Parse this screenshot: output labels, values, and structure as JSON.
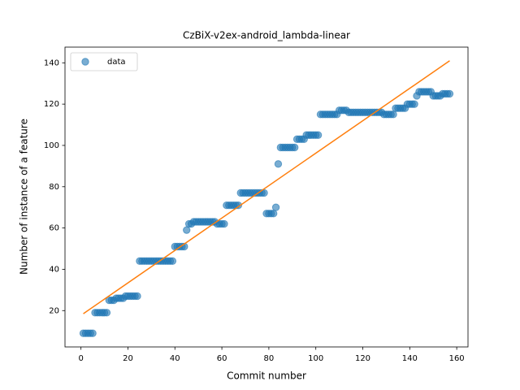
{
  "chart_data": {
    "type": "scatter",
    "title": "CzBiX-v2ex-android_lambda-linear",
    "xlabel": "Commit number",
    "ylabel": "Number of instance of a feature",
    "xlim": [
      -6.8,
      164.8
    ],
    "ylim": [
      2.4,
      147.6
    ],
    "xticks": [
      0,
      20,
      40,
      60,
      80,
      100,
      120,
      140,
      160
    ],
    "yticks": [
      20,
      40,
      60,
      80,
      100,
      120,
      140
    ],
    "legend": "upper left",
    "series": [
      {
        "name": "data",
        "color": "#1f77b4",
        "x": [
          1,
          2,
          3,
          4,
          5,
          6,
          7,
          8,
          9,
          10,
          11,
          12,
          13,
          14,
          15,
          16,
          17,
          18,
          19,
          20,
          21,
          22,
          23,
          24,
          25,
          26,
          27,
          28,
          29,
          30,
          31,
          32,
          33,
          34,
          35,
          36,
          37,
          38,
          39,
          40,
          41,
          42,
          43,
          44,
          45,
          46,
          47,
          48,
          49,
          50,
          51,
          52,
          53,
          54,
          55,
          56,
          57,
          58,
          59,
          60,
          61,
          62,
          63,
          64,
          65,
          66,
          67,
          68,
          69,
          70,
          71,
          72,
          73,
          74,
          75,
          76,
          77,
          78,
          79,
          80,
          81,
          82,
          83,
          84,
          85,
          86,
          87,
          88,
          89,
          90,
          91,
          92,
          93,
          94,
          95,
          96,
          97,
          98,
          99,
          100,
          101,
          102,
          103,
          104,
          105,
          106,
          107,
          108,
          109,
          110,
          111,
          112,
          113,
          114,
          115,
          116,
          117,
          118,
          119,
          120,
          121,
          122,
          123,
          124,
          125,
          126,
          127,
          128,
          129,
          130,
          131,
          132,
          133,
          134,
          135,
          136,
          137,
          138,
          139,
          140,
          141,
          142,
          143,
          144,
          145,
          146,
          147,
          148,
          149,
          150,
          151,
          152,
          153,
          154,
          155,
          156,
          157
        ],
        "values": [
          9,
          9,
          9,
          9,
          9,
          19,
          19,
          19,
          19,
          19,
          19,
          25,
          25,
          25,
          26,
          26,
          26,
          26,
          27,
          27,
          27,
          27,
          27,
          27,
          44,
          44,
          44,
          44,
          44,
          44,
          44,
          44,
          44,
          44,
          44,
          44,
          44,
          44,
          44,
          51,
          51,
          51,
          51,
          51,
          59,
          62,
          62,
          63,
          63,
          63,
          63,
          63,
          63,
          63,
          63,
          63,
          63,
          62,
          62,
          62,
          62,
          71,
          71,
          71,
          71,
          71,
          71,
          77,
          77,
          77,
          77,
          77,
          77,
          77,
          77,
          77,
          77,
          77,
          67,
          67,
          67,
          67,
          70,
          91,
          99,
          99,
          99,
          99,
          99,
          99,
          99,
          103,
          103,
          103,
          103,
          105,
          105,
          105,
          105,
          105,
          105,
          115,
          115,
          115,
          115,
          115,
          115,
          115,
          115,
          117,
          117,
          117,
          117,
          116,
          116,
          116,
          116,
          116,
          116,
          116,
          116,
          116,
          116,
          116,
          116,
          116,
          116,
          116,
          115,
          115,
          115,
          115,
          115,
          118,
          118,
          118,
          118,
          118,
          120,
          120,
          120,
          120,
          124,
          126,
          126,
          126,
          126,
          126,
          126,
          124,
          124,
          124,
          124,
          125,
          125,
          125,
          125
        ]
      }
    ],
    "line": {
      "color": "#ff7f0e",
      "x": [
        1,
        157
      ],
      "values": [
        18.5,
        141
      ]
    }
  }
}
